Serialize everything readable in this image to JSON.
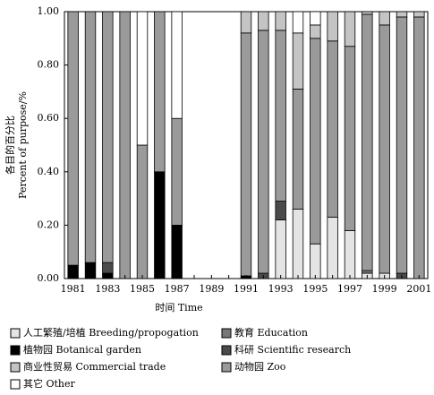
{
  "chart_data": {
    "type": "stacked_bar",
    "x_label": "时间 Time",
    "y_label": [
      "各目的百分比",
      "Percent of purpose/%"
    ],
    "categories": [
      "1981",
      null,
      "1983",
      null,
      "1985",
      null,
      "1987",
      null,
      "1989",
      null,
      "1991",
      null,
      "1993",
      null,
      "1995",
      null,
      "1997",
      null,
      "1999",
      null,
      "2001"
    ],
    "ylim": [
      0,
      1
    ],
    "yticks": [
      {
        "value": 0,
        "label": "0.00"
      },
      {
        "value": 0.2,
        "label": "0.20"
      },
      {
        "value": 0.4,
        "label": "0.40"
      },
      {
        "value": 0.6,
        "label": "0.60"
      },
      {
        "value": 0.8,
        "label": "0.80"
      },
      {
        "value": 1,
        "label": "1.00"
      }
    ],
    "series": [
      {
        "name": "植物园 Botanical garden",
        "color": "#000000",
        "values": [
          0.05,
          0.06,
          0.02,
          0,
          0,
          0.4,
          0.2,
          0,
          0,
          0,
          0.01,
          0,
          0,
          0,
          0,
          0,
          0,
          0,
          0,
          0,
          0
        ]
      },
      {
        "name": "人工繁殖/培植 Breeding/propogation",
        "color": "#e4e4e4",
        "values": [
          0,
          0,
          0,
          0,
          0,
          0,
          0,
          0,
          0,
          0,
          0,
          0,
          0.22,
          0.26,
          0.13,
          0.23,
          0.18,
          0.02,
          0.02,
          0,
          0
        ]
      },
      {
        "name": "科研 Scientific research",
        "color": "#4a4a4a",
        "values": [
          0,
          0,
          0.04,
          0,
          0,
          0,
          0,
          0,
          0,
          0,
          0,
          0.02,
          0.07,
          0,
          0,
          0,
          0,
          0,
          0,
          0.02,
          0
        ]
      },
      {
        "name": "教育 Education",
        "color": "#777777",
        "values": [
          0,
          0,
          0,
          0,
          0,
          0,
          0,
          0,
          0,
          0,
          0,
          0,
          0,
          0,
          0,
          0,
          0,
          0.01,
          0,
          0,
          0
        ]
      },
      {
        "name": "动物园 Zoo",
        "color": "#9a9a9a",
        "values": [
          0.95,
          0.94,
          0.94,
          1,
          0.5,
          0.6,
          0.4,
          0,
          0,
          0,
          0.91,
          0.91,
          0.64,
          0.45,
          0.77,
          0.66,
          0.69,
          0.96,
          0.93,
          0.96,
          0.98
        ]
      },
      {
        "name": "商业性贸易 Commercial trade",
        "color": "#c4c4c4",
        "values": [
          0,
          0,
          0,
          0,
          0,
          0,
          0,
          0,
          0,
          0,
          0.08,
          0.07,
          0.07,
          0.21,
          0.05,
          0.11,
          0.13,
          0.01,
          0.05,
          0.02,
          0.02
        ]
      },
      {
        "name": "其它 Other",
        "color": "#ffffff",
        "values": [
          0,
          0,
          0,
          0,
          0.5,
          0,
          0.4,
          0,
          0,
          0,
          0,
          0,
          0,
          0.08,
          0.05,
          0,
          0,
          0,
          0,
          0,
          0
        ]
      }
    ]
  }
}
